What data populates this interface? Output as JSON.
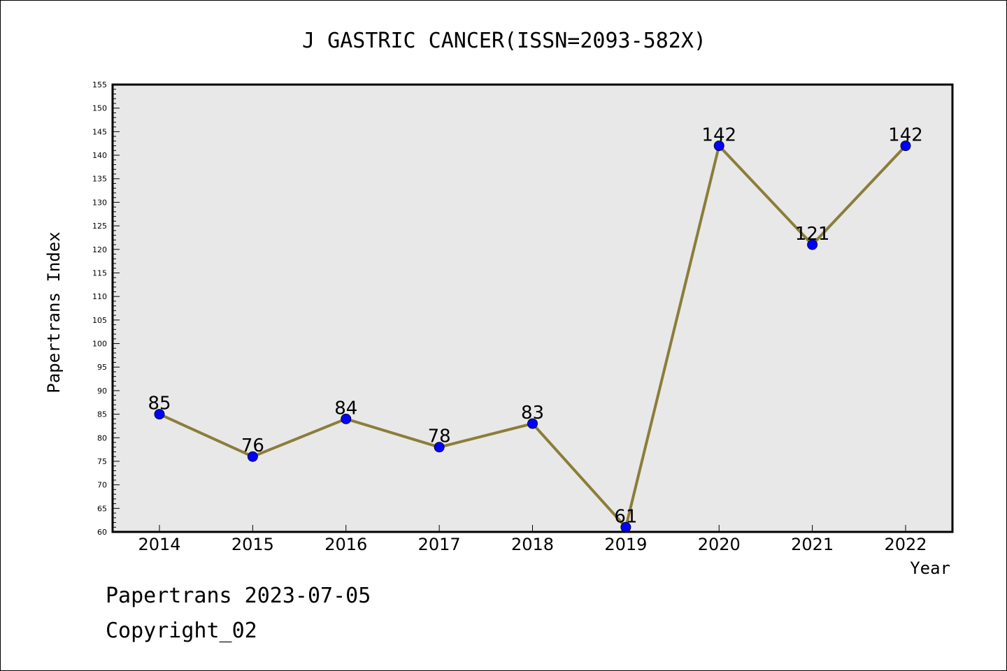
{
  "chart_data": {
    "type": "line",
    "title": "J GASTRIC CANCER(ISSN=2093-582X)",
    "xlabel": "Year",
    "ylabel": "Papertrans Index",
    "categories": [
      "2014",
      "2015",
      "2016",
      "2017",
      "2018",
      "2019",
      "2020",
      "2021",
      "2022"
    ],
    "values": [
      85,
      76,
      84,
      78,
      83,
      61,
      142,
      121,
      142
    ],
    "data_labels": [
      "85",
      "76",
      "84",
      "78",
      "83",
      "61",
      "142",
      "121",
      "142"
    ],
    "ylim": [
      60,
      155
    ],
    "ytick_step": 5,
    "legend": "none",
    "grid": false,
    "colors": {
      "line": "#8b7d3a",
      "marker": "#0000ff",
      "plot_background": "#e8e8e8"
    }
  },
  "footer": {
    "date_text": "Papertrans 2023-07-05",
    "copyright_text": "Copyright_02"
  }
}
